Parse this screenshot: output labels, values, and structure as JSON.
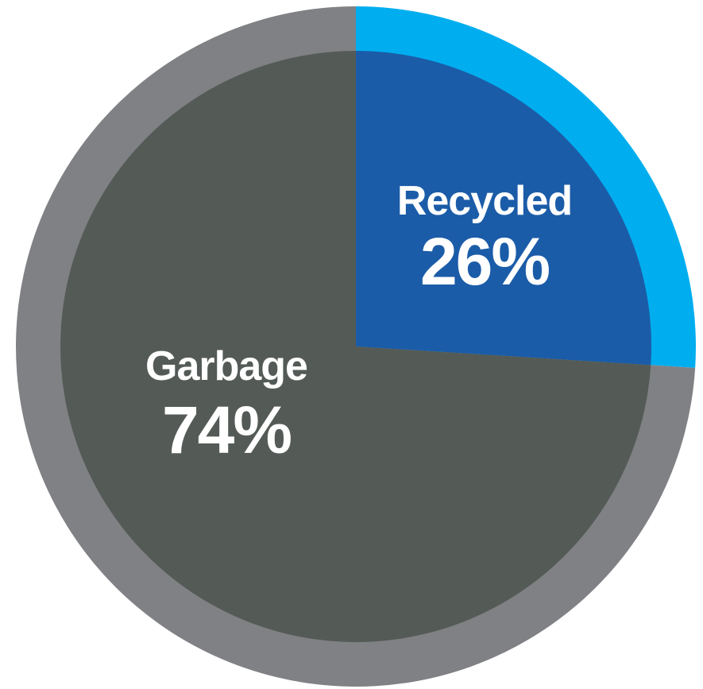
{
  "chart_data": {
    "type": "pie",
    "slices": [
      {
        "label": "Recycled",
        "value": 26,
        "value_label": "26%",
        "inner_color": "#1b5ca8",
        "outer_color": "#00aeef"
      },
      {
        "label": "Garbage",
        "value": 74,
        "value_label": "74%",
        "inner_color": "#545b56",
        "outer_color": "#808184"
      }
    ],
    "start_angle_deg": 0,
    "direction": "clockwise",
    "legend": "none"
  }
}
